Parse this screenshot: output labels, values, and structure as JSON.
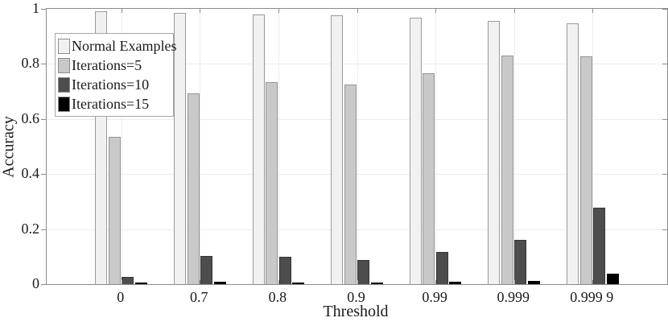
{
  "chart_data": {
    "type": "bar",
    "title": "",
    "xlabel": "Threshold",
    "ylabel": "Accuracy",
    "categories": [
      "0",
      "0.7",
      "0.8",
      "0.9",
      "0.99",
      "0.999",
      "0.999 9"
    ],
    "series": [
      {
        "name": "Normal Examples",
        "color": "#f1f1f1",
        "edge": "#9b9b9b",
        "values": [
          0.99,
          0.985,
          0.98,
          0.978,
          0.968,
          0.957,
          0.948
        ]
      },
      {
        "name": "Iterations=5",
        "color": "#c9c9c9",
        "edge": "#949494",
        "values": [
          0.535,
          0.694,
          0.735,
          0.726,
          0.767,
          0.829,
          0.827
        ]
      },
      {
        "name": "Iterations=10",
        "color": "#4d4d4d",
        "edge": "#373737",
        "values": [
          0.026,
          0.102,
          0.099,
          0.088,
          0.118,
          0.161,
          0.278
        ]
      },
      {
        "name": "Iterations=15",
        "color": "#000000",
        "edge": "#000000",
        "values": [
          0.002,
          0.008,
          0.004,
          0.005,
          0.008,
          0.013,
          0.038
        ]
      }
    ],
    "ylim": [
      0,
      1
    ],
    "xlim_padded_units": [
      0.05,
      7.95
    ],
    "yticks": [
      0,
      0.2,
      0.4,
      0.6,
      0.8,
      1
    ],
    "ytick_labels": [
      "0",
      "0.2",
      "0.4",
      "0.6",
      "0.8",
      "1"
    ],
    "grid": true,
    "legend_position": "top-left",
    "box": true
  },
  "colors": {
    "axis": "#8c8c8c",
    "grid": "#ececec",
    "text": "#1a1a1a",
    "background": "#ffffff"
  }
}
